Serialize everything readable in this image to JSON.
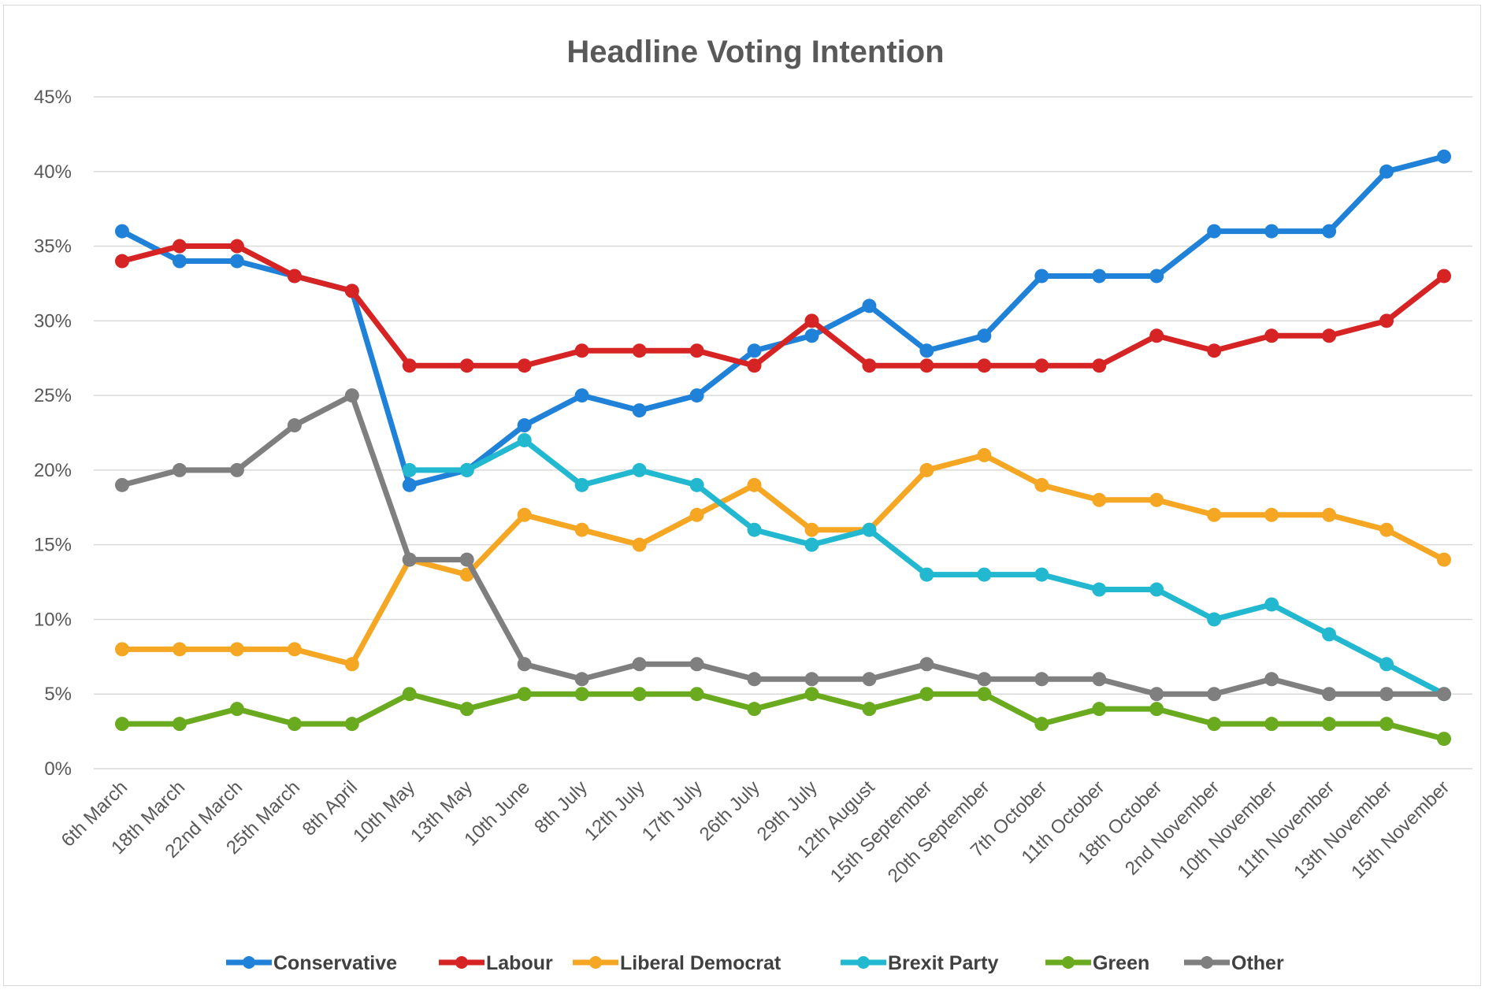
{
  "chart_data": {
    "type": "line",
    "title": "Headline Voting Intention",
    "xlabel": "",
    "ylabel": "",
    "ylim": [
      0,
      45
    ],
    "y_ticks": [
      "0%",
      "5%",
      "10%",
      "15%",
      "20%",
      "25%",
      "30%",
      "35%",
      "40%",
      "45%"
    ],
    "grid": "horizontal",
    "legend_position": "bottom",
    "categories": [
      "6th March",
      "18th March",
      "22nd March",
      "25th March",
      "8th April",
      "10th May",
      "13th May",
      "10th June",
      "8th July",
      "12th July",
      "17th July",
      "26th July",
      "29th July",
      "12th August",
      "15th September",
      "20th September",
      "7th October",
      "11th October",
      "18th October",
      "2nd November",
      "10th November",
      "11th November",
      "13th November",
      "15th November"
    ],
    "series": [
      {
        "name": "Conservative",
        "color": "#1f82d8",
        "values": [
          36,
          34,
          34,
          33,
          32,
          19,
          20,
          23,
          25,
          24,
          25,
          28,
          29,
          31,
          28,
          29,
          33,
          33,
          33,
          36,
          36,
          36,
          40,
          41
        ]
      },
      {
        "name": "Labour",
        "color": "#d62424",
        "values": [
          34,
          35,
          35,
          33,
          32,
          27,
          27,
          27,
          28,
          28,
          28,
          27,
          30,
          27,
          27,
          27,
          27,
          27,
          29,
          28,
          29,
          29,
          30,
          33
        ]
      },
      {
        "name": "Liberal Democrat",
        "color": "#f5a623",
        "values": [
          8,
          8,
          8,
          8,
          7,
          14,
          13,
          17,
          16,
          15,
          17,
          19,
          16,
          16,
          20,
          21,
          19,
          18,
          18,
          17,
          17,
          17,
          16,
          14
        ]
      },
      {
        "name": "Brexit Party",
        "color": "#21b8d0",
        "values": [
          null,
          null,
          null,
          null,
          null,
          20,
          20,
          22,
          19,
          20,
          19,
          16,
          15,
          16,
          13,
          13,
          13,
          12,
          12,
          10,
          11,
          9,
          7,
          5
        ]
      },
      {
        "name": "Green",
        "color": "#6aaa1f",
        "values": [
          3,
          3,
          4,
          3,
          3,
          5,
          4,
          5,
          5,
          5,
          5,
          4,
          5,
          4,
          5,
          5,
          3,
          4,
          4,
          3,
          3,
          3,
          3,
          2
        ]
      },
      {
        "name": "Other",
        "color": "#7f7f7f",
        "values": [
          19,
          20,
          20,
          23,
          25,
          14,
          14,
          7,
          6,
          7,
          7,
          6,
          6,
          6,
          7,
          6,
          6,
          6,
          5,
          5,
          6,
          5,
          5,
          5
        ]
      }
    ]
  }
}
